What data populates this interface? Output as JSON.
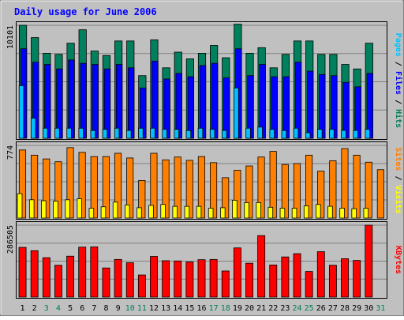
{
  "title": "Daily usage for June 2006",
  "colors": {
    "background": "#c0c0c0",
    "hits": "#00805c",
    "files": "#0000ff",
    "pages": "#00c0ff",
    "visits": "#ffff00",
    "sites": "#ff8000",
    "kbytes": "#ff0000",
    "title": "#0000ff",
    "weekend_label": "#00805c"
  },
  "chart_data": [
    {
      "type": "bar",
      "title": "Daily usage for June 2006",
      "panel": "hits-files-pages",
      "categories": [
        "1",
        "2",
        "3",
        "4",
        "5",
        "6",
        "7",
        "8",
        "9",
        "10",
        "11",
        "12",
        "13",
        "14",
        "15",
        "16",
        "17",
        "18",
        "19",
        "20",
        "21",
        "22",
        "23",
        "24",
        "25",
        "26",
        "27",
        "28",
        "29",
        "30",
        "31"
      ],
      "weekend_days": [
        "3",
        "4",
        "10",
        "11",
        "17",
        "18",
        "24",
        "25",
        "31"
      ],
      "ylabel_parts": [
        "Pages",
        "Files",
        "Hits"
      ],
      "y_tick_label": "10101",
      "y_tick_value": 10101,
      "ylim": [
        0,
        10101
      ],
      "grid": true,
      "series": [
        {
          "name": "Hits",
          "values": [
            10101,
            9000,
            7600,
            7500,
            8500,
            9700,
            7800,
            7400,
            8700,
            8700,
            5600,
            8800,
            6300,
            7700,
            7100,
            7600,
            8300,
            7200,
            10200,
            7600,
            8100,
            6300,
            7500,
            8700,
            8700,
            7500,
            7500,
            6600,
            6200,
            8500,
            0
          ]
        },
        {
          "name": "Files",
          "values": [
            8000,
            6800,
            6600,
            6200,
            7000,
            6700,
            6600,
            6200,
            6600,
            6300,
            4500,
            6900,
            5300,
            5800,
            5500,
            6500,
            6700,
            5400,
            8000,
            5600,
            6600,
            5500,
            5500,
            6800,
            6000,
            5700,
            5600,
            5000,
            4600,
            5800,
            0
          ]
        },
        {
          "name": "Pages",
          "values": [
            4700,
            1800,
            900,
            900,
            900,
            900,
            700,
            800,
            900,
            700,
            900,
            900,
            800,
            800,
            700,
            900,
            800,
            700,
            4500,
            900,
            1000,
            800,
            700,
            900,
            500,
            800,
            800,
            700,
            700,
            800,
            0
          ]
        }
      ]
    },
    {
      "type": "bar",
      "panel": "visits-sites",
      "categories": [
        "1",
        "2",
        "3",
        "4",
        "5",
        "6",
        "7",
        "8",
        "9",
        "10",
        "11",
        "12",
        "13",
        "14",
        "15",
        "16",
        "17",
        "18",
        "19",
        "20",
        "21",
        "22",
        "23",
        "24",
        "25",
        "26",
        "27",
        "28",
        "29",
        "30",
        "31"
      ],
      "ylabel_parts": [
        "Sites",
        "Visits"
      ],
      "y_tick_label": "774",
      "y_tick_value": 774,
      "ylim": [
        0,
        774
      ],
      "grid": true,
      "series": [
        {
          "name": "Sites",
          "values": [
            725,
            670,
            630,
            600,
            750,
            700,
            655,
            655,
            690,
            640,
            400,
            690,
            620,
            650,
            615,
            655,
            590,
            430,
            510,
            555,
            650,
            710,
            570,
            580,
            670,
            500,
            610,
            740,
            670,
            595,
            515
          ]
        },
        {
          "name": "Visits",
          "values": [
            260,
            195,
            185,
            180,
            195,
            205,
            105,
            120,
            170,
            140,
            110,
            135,
            145,
            125,
            125,
            125,
            105,
            110,
            190,
            165,
            165,
            115,
            105,
            105,
            130,
            145,
            125,
            105,
            100,
            105,
            0
          ]
        }
      ]
    },
    {
      "type": "bar",
      "panel": "kbytes",
      "categories": [
        "1",
        "2",
        "3",
        "4",
        "5",
        "6",
        "7",
        "8",
        "9",
        "10",
        "11",
        "12",
        "13",
        "14",
        "15",
        "16",
        "17",
        "18",
        "19",
        "20",
        "21",
        "22",
        "23",
        "24",
        "25",
        "26",
        "27",
        "28",
        "29",
        "30",
        "31"
      ],
      "ylabel_parts": [
        "KBytes"
      ],
      "y_tick_label": "286505",
      "y_tick_value": 286505,
      "ylim": [
        0,
        286505
      ],
      "grid": true,
      "series": [
        {
          "name": "KBytes",
          "values": [
            198000,
            185000,
            157000,
            127000,
            163000,
            199000,
            200000,
            116000,
            150000,
            137000,
            88000,
            162000,
            145000,
            144000,
            140000,
            149000,
            150000,
            104000,
            196000,
            135000,
            245000,
            128000,
            160000,
            173000,
            102000,
            181000,
            127000,
            153000,
            146000,
            286505,
            0
          ]
        }
      ]
    }
  ]
}
